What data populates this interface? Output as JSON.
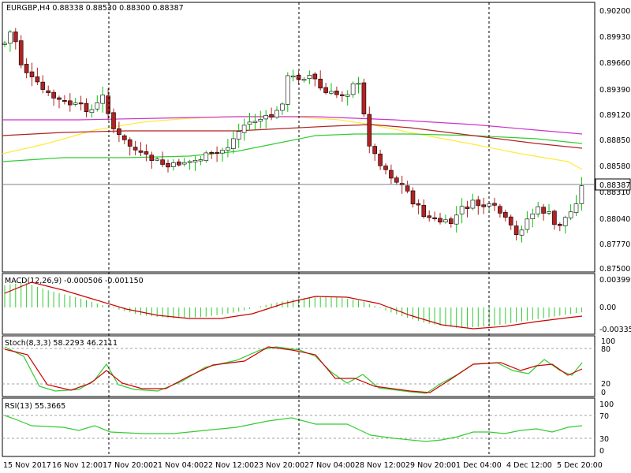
{
  "chart_header": {
    "symbol": "EURGBP,H4",
    "open": "0.88338",
    "high": "0.88530",
    "low": "0.88300",
    "close": "0.88387"
  },
  "price_axis": {
    "labels": [
      "0.90200",
      "0.89930",
      "0.89660",
      "0.89390",
      "0.89120",
      "0.88850",
      "0.88580",
      "0.88310",
      "0.88040",
      "0.87770",
      "0.87500"
    ],
    "current_price": "0.88387"
  },
  "indicators": {
    "macd": {
      "title": "MACD(12,26,9) -0.000506 -0.001150",
      "levels": [
        "0.003999",
        "0.00",
        "-0.00335"
      ]
    },
    "stoch": {
      "title": "Stoch(8,3,3) 58.2293 46.2111",
      "levels": [
        "100",
        "80",
        "20",
        "0"
      ]
    },
    "rsi": {
      "title": "RSI(13) 55.3665",
      "levels": [
        "100",
        "70",
        "30",
        "0"
      ]
    }
  },
  "time_axis": {
    "labels": [
      "15 Nov 2017",
      "16 Nov 12:00",
      "17 Nov 20:00",
      "21 Nov 04:00",
      "22 Nov 12:00",
      "23 Nov 20:00",
      "27 Nov 04:00",
      "28 Nov 12:00",
      "29 Nov 20:00",
      "1 Dec 04:00",
      "4 Dec 12:00",
      "5 Dec 20:00"
    ]
  },
  "colors": {
    "bull": "#00c800",
    "bear": "#b22222",
    "ma_fast": "#ffeb3b",
    "ma_mid": "#33cc33",
    "ma_slow": "#b22222",
    "ma_long": "#cc33cc",
    "macd_hist": "#33cc33",
    "macd_signal": "#cc0000",
    "stoch_k": "#33cc33",
    "stoch_d": "#cc0000",
    "rsi": "#33cc33"
  },
  "chart_data": {
    "type": "candlestick",
    "x": [
      "15 Nov 2017",
      "16 Nov 12:00",
      "17 Nov 20:00",
      "21 Nov 04:00",
      "22 Nov 12:00",
      "23 Nov 20:00",
      "27 Nov 04:00",
      "28 Nov 12:00",
      "29 Nov 20:00",
      "1 Dec 04:00",
      "4 Dec 12:00",
      "5 Dec 20:00"
    ],
    "close": [
      0.8965,
      0.8915,
      0.8855,
      0.884,
      0.8865,
      0.8935,
      0.8945,
      0.8915,
      0.879,
      0.881,
      0.8815,
      0.8838
    ],
    "ylim": [
      0.875,
      0.902
    ]
  }
}
